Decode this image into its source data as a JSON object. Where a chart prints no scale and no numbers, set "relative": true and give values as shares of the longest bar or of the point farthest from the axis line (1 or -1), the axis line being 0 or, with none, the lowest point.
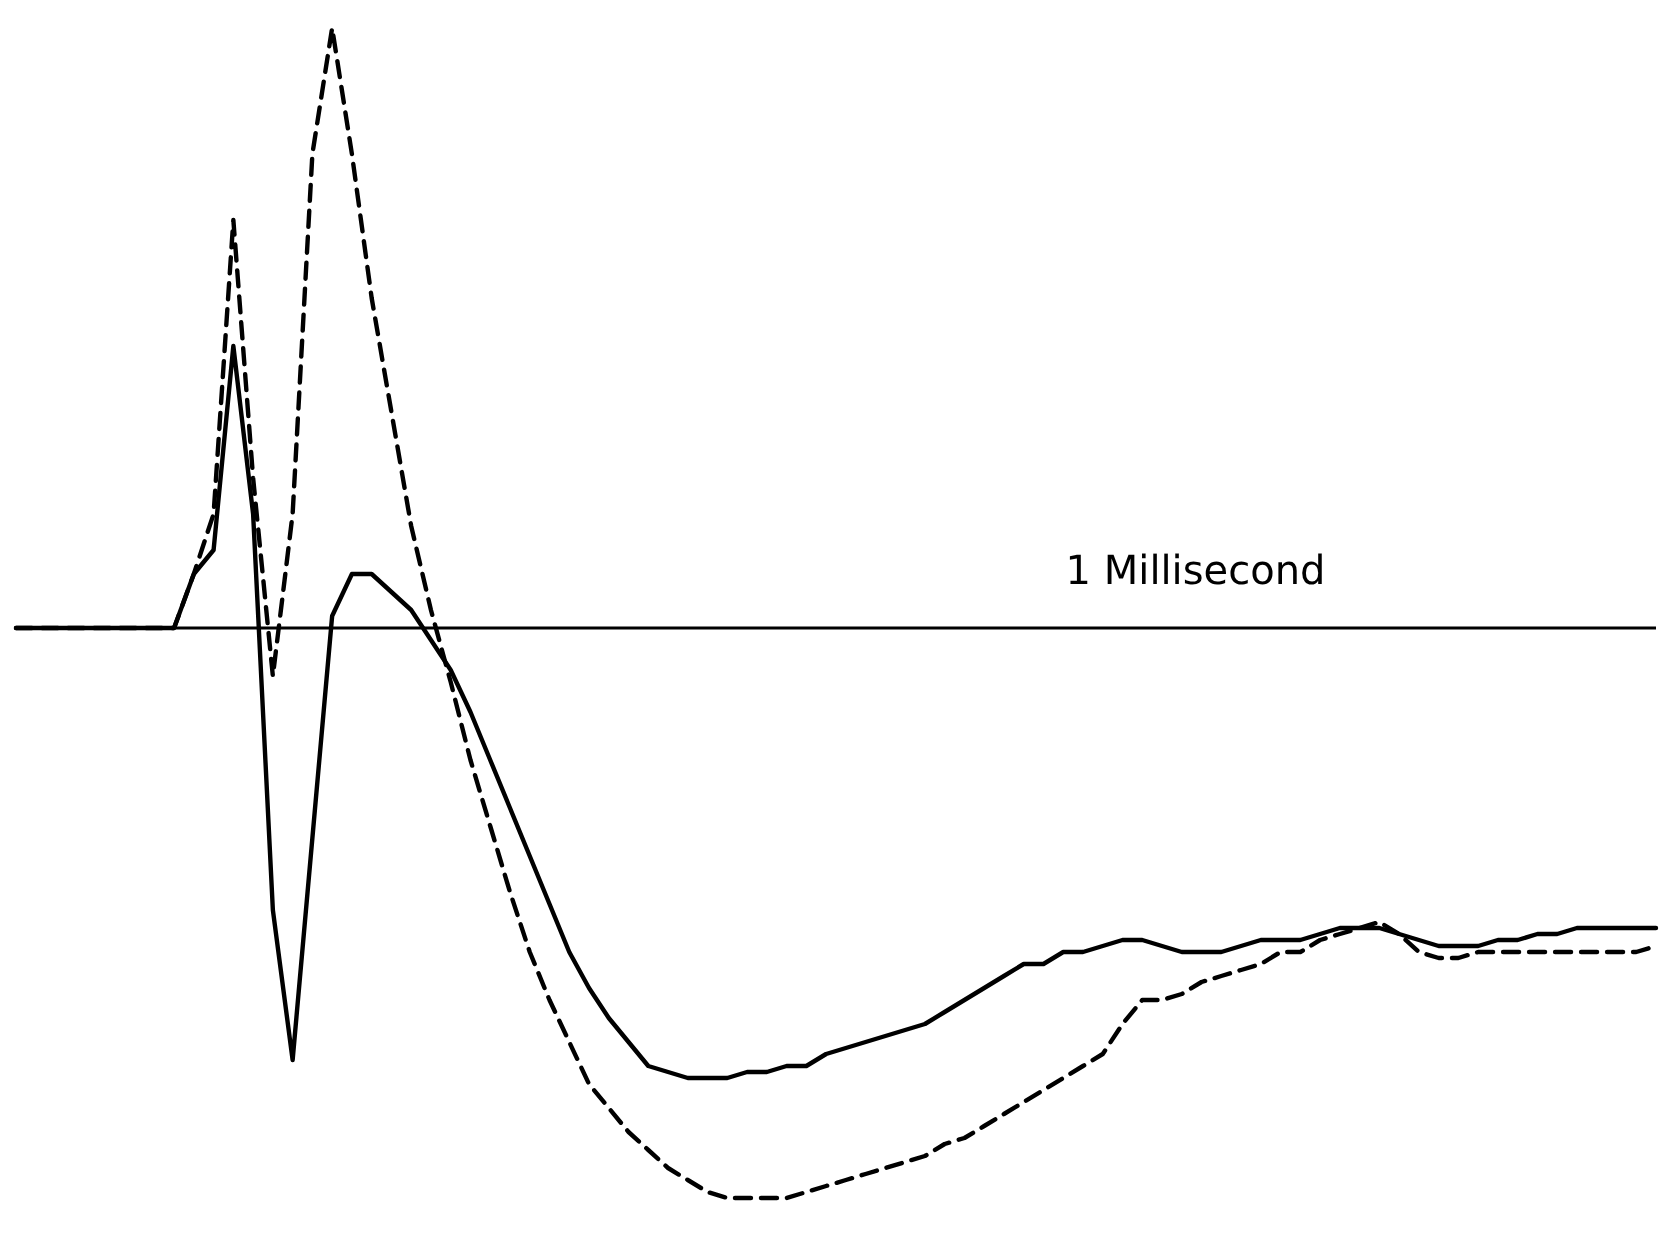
{
  "chart_data": {
    "type": "line",
    "relative": true,
    "annotations": [
      "1 Millisecond"
    ],
    "marker": "none",
    "categories": [
      null,
      null,
      null,
      null,
      null,
      null,
      null,
      null,
      null,
      null,
      null,
      null,
      null,
      null,
      null,
      null,
      null,
      null,
      null,
      null,
      null,
      null,
      null,
      null,
      null,
      null,
      null,
      null,
      null,
      null,
      null,
      null,
      null,
      null,
      null,
      null,
      null,
      null,
      null,
      null,
      null,
      null,
      null,
      null,
      null,
      null,
      null,
      null,
      null,
      null,
      null,
      null,
      null,
      null,
      null,
      null,
      null,
      null,
      null,
      null,
      null,
      null,
      null,
      null,
      null,
      null,
      null,
      null,
      null,
      null,
      null,
      null,
      null,
      null,
      null,
      null,
      null,
      null,
      null,
      null,
      null,
      null,
      null,
      null
    ],
    "series": [
      {
        "color": "#000000",
        "line_style": "solid",
        "values": [
          0,
          0,
          0,
          0,
          0,
          0,
          0,
          0,
          0,
          0.09,
          0.13,
          0.47,
          0.19,
          -0.47,
          -0.72,
          -0.35,
          0.02,
          0.09,
          0.09,
          0.06,
          0.03,
          -0.02,
          -0.07,
          -0.14,
          -0.22,
          -0.3,
          -0.38,
          -0.46,
          -0.54,
          -0.6,
          -0.65,
          -0.69,
          -0.73,
          -0.74,
          -0.75,
          -0.75,
          -0.75,
          -0.74,
          -0.74,
          -0.73,
          -0.73,
          -0.71,
          -0.7,
          -0.69,
          -0.68,
          -0.67,
          -0.66,
          -0.64,
          -0.62,
          -0.6,
          -0.58,
          -0.56,
          -0.56,
          -0.54,
          -0.54,
          -0.53,
          -0.52,
          -0.52,
          -0.53,
          -0.54,
          -0.54,
          -0.54,
          -0.53,
          -0.52,
          -0.52,
          -0.52,
          -0.51,
          -0.5,
          -0.5,
          -0.5,
          -0.51,
          -0.52,
          -0.53,
          -0.53,
          -0.53,
          -0.52,
          -0.52,
          -0.51,
          -0.51,
          -0.5,
          -0.5,
          -0.5,
          -0.5,
          -0.5
        ]
      },
      {
        "color": "#000000",
        "line_style": "dashed",
        "values": [
          0,
          0,
          0,
          0,
          0,
          0,
          0,
          0,
          0,
          0.09,
          0.19,
          0.68,
          0.25,
          -0.08,
          0.19,
          0.79,
          1,
          0.79,
          0.55,
          0.36,
          0.17,
          0.03,
          -0.09,
          -0.22,
          -0.33,
          -0.44,
          -0.54,
          -0.62,
          -0.69,
          -0.76,
          -0.8,
          -0.84,
          -0.87,
          -0.9,
          -0.92,
          -0.94,
          -0.95,
          -0.95,
          -0.95,
          -0.95,
          -0.94,
          -0.93,
          -0.92,
          -0.91,
          -0.9,
          -0.89,
          -0.88,
          -0.86,
          -0.85,
          -0.83,
          -0.81,
          -0.79,
          -0.77,
          -0.75,
          -0.73,
          -0.71,
          -0.66,
          -0.62,
          -0.62,
          -0.61,
          -0.59,
          -0.58,
          -0.57,
          -0.56,
          -0.54,
          -0.54,
          -0.52,
          -0.51,
          -0.5,
          -0.49,
          -0.51,
          -0.54,
          -0.55,
          -0.55,
          -0.54,
          -0.54,
          -0.54,
          -0.54,
          -0.54,
          -0.54,
          -0.54,
          -0.54,
          -0.54,
          -0.53
        ]
      }
    ]
  }
}
